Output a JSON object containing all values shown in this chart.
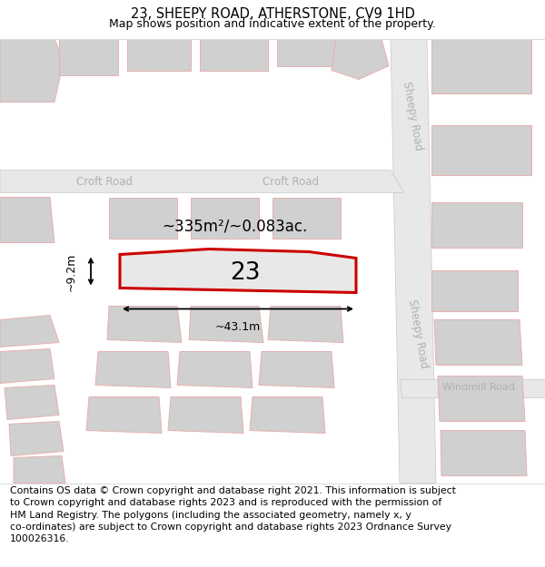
{
  "title": "23, SHEEPY ROAD, ATHERSTONE, CV9 1HD",
  "subtitle": "Map shows position and indicative extent of the property.",
  "footer": "Contains OS data © Crown copyright and database right 2021. This information is subject\nto Crown copyright and database rights 2023 and is reproduced with the permission of\nHM Land Registry. The polygons (including the associated geometry, namely x, y\nco-ordinates) are subject to Crown copyright and database rights 2023 Ordnance Survey\n100026316.",
  "road_fill": "#e8e8e8",
  "road_stroke": "#c8c8c8",
  "building_fill": "#d0d0d0",
  "building_stroke": "#e8b0b0",
  "plot_stroke": "#cc0000",
  "plot_fill": "#e8e8e8",
  "plot_label": "23",
  "area_label": "~335m²/~0.083ac.",
  "width_label": "~43.1m",
  "height_label": "~9.2m",
  "title_fontsize": 10.5,
  "subtitle_fontsize": 9,
  "footer_fontsize": 7.8,
  "road_label_color": "#b0b0b0",
  "road_label_fontsize": 8.5,
  "dim_label_fontsize": 9
}
